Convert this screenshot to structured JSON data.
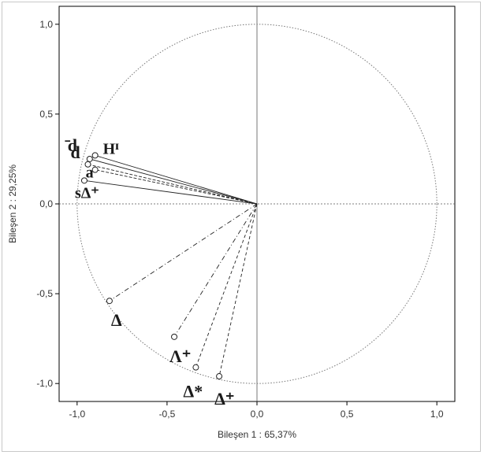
{
  "chart_data": {
    "type": "scatter",
    "title": "",
    "xlabel": "Bileşen 1 : 65,37%",
    "ylabel": "Bileşen 2 : 29,25%",
    "xlim": [
      -1.1,
      1.1
    ],
    "ylim": [
      -1.1,
      1.1
    ],
    "x_ticks": [
      "-1,0",
      "-0,5",
      "0,0",
      "0,5",
      "1,0"
    ],
    "y_ticks": [
      "1,0",
      "0,5",
      "0,0",
      "-0,5",
      "-1,0"
    ],
    "unit_circle": true,
    "grid": false,
    "points": [
      {
        "label": "Hᴵ",
        "x": -0.9,
        "y": 0.27
      },
      {
        "label": "̄d",
        "x": -0.93,
        "y": 0.25
      },
      {
        "label": "d",
        "x": -0.94,
        "y": 0.22
      },
      {
        "label": "a",
        "x": -0.9,
        "y": 0.19
      },
      {
        "label": "sΔ⁺",
        "x": -0.96,
        "y": 0.13
      },
      {
        "label": "Δ",
        "x": -0.82,
        "y": -0.54
      },
      {
        "label": "Λ⁺",
        "x": -0.46,
        "y": -0.74
      },
      {
        "label": "Δ*",
        "x": -0.34,
        "y": -0.91
      },
      {
        "label": "Δ⁺",
        "x": -0.21,
        "y": -0.96
      }
    ]
  }
}
